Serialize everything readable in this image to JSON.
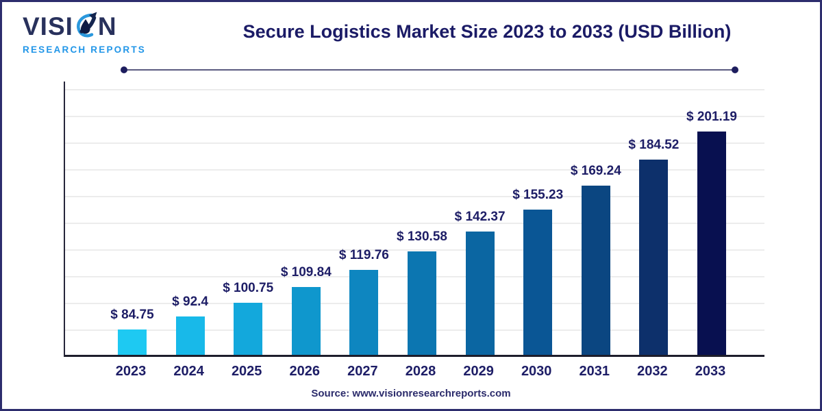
{
  "brand": {
    "name_prefix": "VISI",
    "name_suffix": "N",
    "tagline": "RESEARCH REPORTS"
  },
  "header": {
    "title": "Secure Logistics Market Size 2023 to 2033 (USD Billion)"
  },
  "footer": {
    "source": "Source: www.visionresearchreports.com"
  },
  "chart_data": {
    "type": "bar",
    "title": "Secure Logistics Market Size 2023 to 2033 (USD Billion)",
    "unit": "USD Billion",
    "categories": [
      "2023",
      "2024",
      "2025",
      "2026",
      "2027",
      "2028",
      "2029",
      "2030",
      "2031",
      "2032",
      "2033"
    ],
    "values": [
      84.75,
      92.4,
      100.75,
      109.84,
      119.76,
      130.58,
      142.37,
      155.23,
      169.24,
      184.52,
      201.19
    ],
    "value_labels": [
      "$ 84.75",
      "$ 92.4",
      "$ 100.75",
      "$ 109.84",
      "$ 119.76",
      "$ 130.58",
      "$ 142.37",
      "$ 155.23",
      "$ 169.24",
      "$ 184.52",
      "$ 201.19"
    ],
    "bar_colors": [
      "#1ec9f2",
      "#18b9e9",
      "#13a8dc",
      "#0f97cd",
      "#0e86c0",
      "#0c76b1",
      "#0b66a2",
      "#0a5695",
      "#0b4681",
      "#0d306b",
      "#081050"
    ],
    "ylim": [
      70,
      216
    ],
    "grid": true,
    "legend": false,
    "xlabel": "",
    "ylabel": ""
  },
  "colors": {
    "navy_text": "#1d1d66",
    "brand_blue": "#2196e8",
    "axis": "#1d1d2b",
    "gridline": "#ececec",
    "border": "#2d2d6d"
  }
}
